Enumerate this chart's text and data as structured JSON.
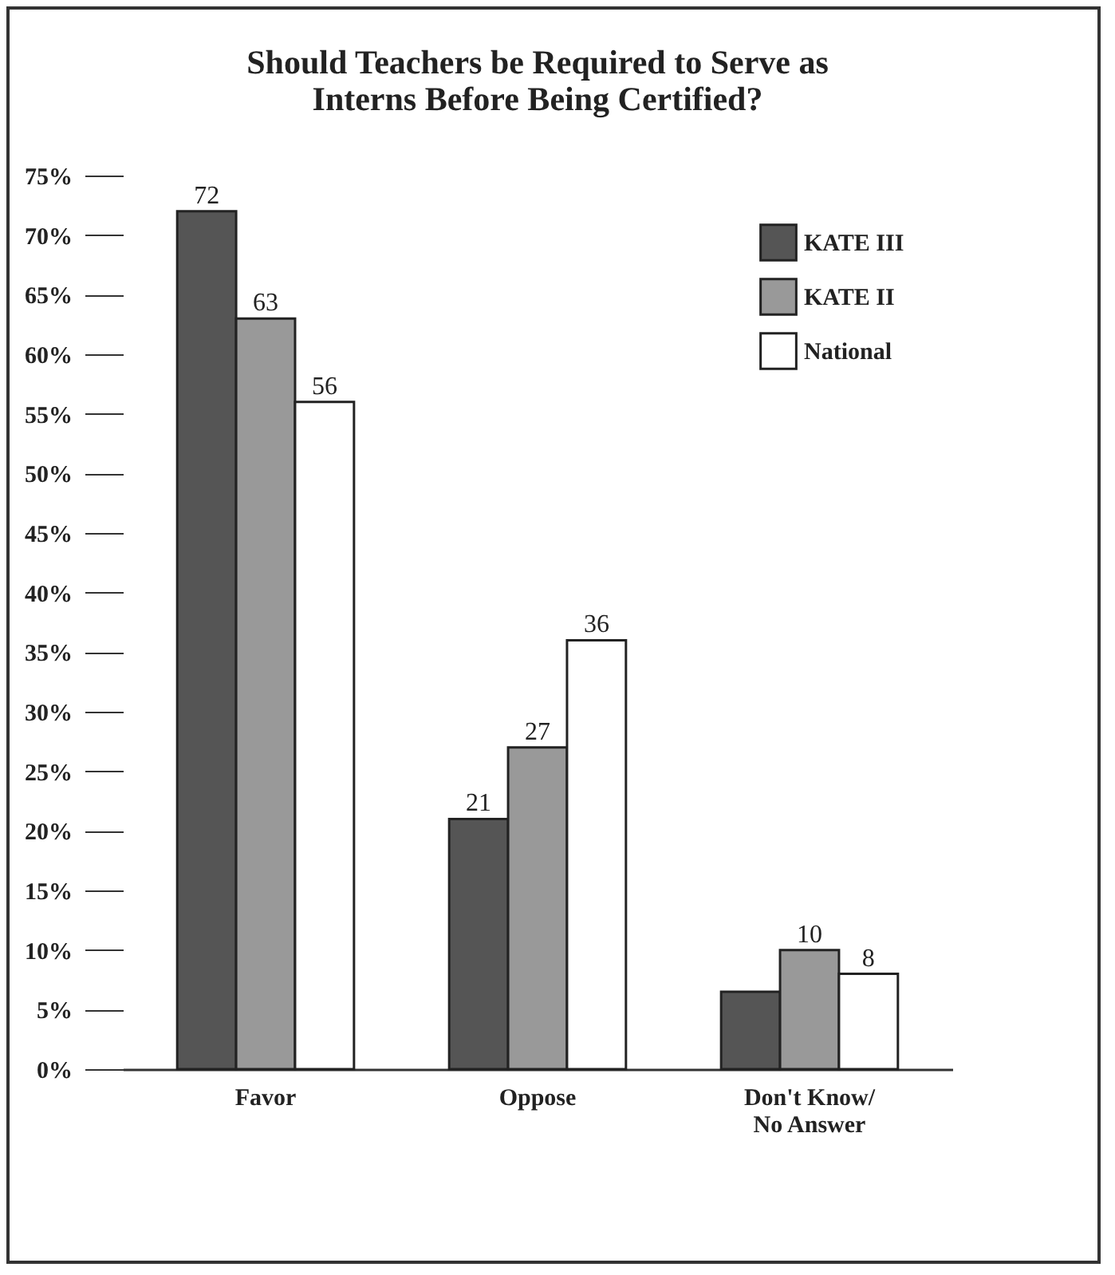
{
  "chart_data": {
    "type": "bar",
    "title": "Should Teachers be Required to Serve as\nInterns Before Being Certified?",
    "categories": [
      "Favor",
      "Oppose",
      "Don't Know/\nNo Answer"
    ],
    "series": [
      {
        "name": "KATE III",
        "color": "#555555",
        "values": [
          72,
          21,
          6.5
        ],
        "value_labels": [
          "72",
          "21",
          null
        ]
      },
      {
        "name": "KATE II",
        "color": "#999999",
        "values": [
          63,
          27,
          10
        ],
        "value_labels": [
          "63",
          "27",
          "10"
        ]
      },
      {
        "name": "National",
        "color": "#ffffff",
        "values": [
          56,
          36,
          8
        ],
        "value_labels": [
          "56",
          "36",
          "8"
        ]
      }
    ],
    "ylim": [
      0,
      75
    ],
    "yticks": [
      {
        "value": 0,
        "label": "0%"
      },
      {
        "value": 5,
        "label": "5%"
      },
      {
        "value": 10,
        "label": "10%"
      },
      {
        "value": 15,
        "label": "15%"
      },
      {
        "value": 20,
        "label": "20%"
      },
      {
        "value": 25,
        "label": "25%"
      },
      {
        "value": 30,
        "label": "30%"
      },
      {
        "value": 35,
        "label": "35%"
      },
      {
        "value": 40,
        "label": "40%"
      },
      {
        "value": 45,
        "label": "45%"
      },
      {
        "value": 50,
        "label": "50%"
      },
      {
        "value": 55,
        "label": "55%"
      },
      {
        "value": 60,
        "label": "60%"
      },
      {
        "value": 65,
        "label": "65%"
      },
      {
        "value": 70,
        "label": "70%"
      },
      {
        "value": 75,
        "label": "75%"
      }
    ],
    "legend": "top right"
  }
}
